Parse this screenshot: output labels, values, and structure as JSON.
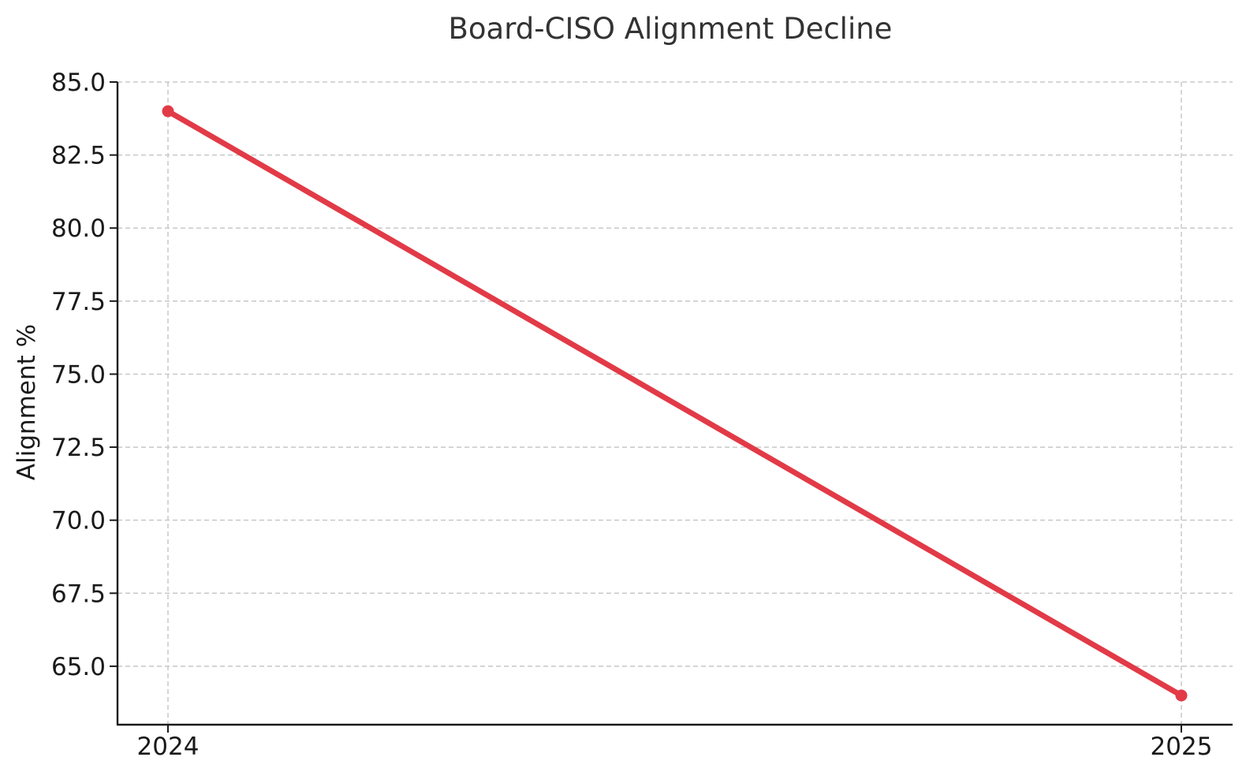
{
  "chart_data": {
    "type": "line",
    "title": "Board-CISO Alignment Decline",
    "xlabel": "",
    "ylabel": "Alignment %",
    "categories": [
      "2024",
      "2025"
    ],
    "series": [
      {
        "values": [
          84,
          64
        ],
        "color": "#e23a47"
      }
    ],
    "ylim": [
      63,
      85
    ],
    "yticks": [
      65.0,
      67.5,
      70.0,
      72.5,
      75.0,
      77.5,
      80.0,
      82.5,
      85.0
    ],
    "ytick_labels": [
      "65.0",
      "67.5",
      "70.0",
      "72.5",
      "75.0",
      "77.5",
      "80.0",
      "82.5",
      "85.0"
    ],
    "grid": true,
    "spines": [
      "left",
      "bottom"
    ]
  }
}
